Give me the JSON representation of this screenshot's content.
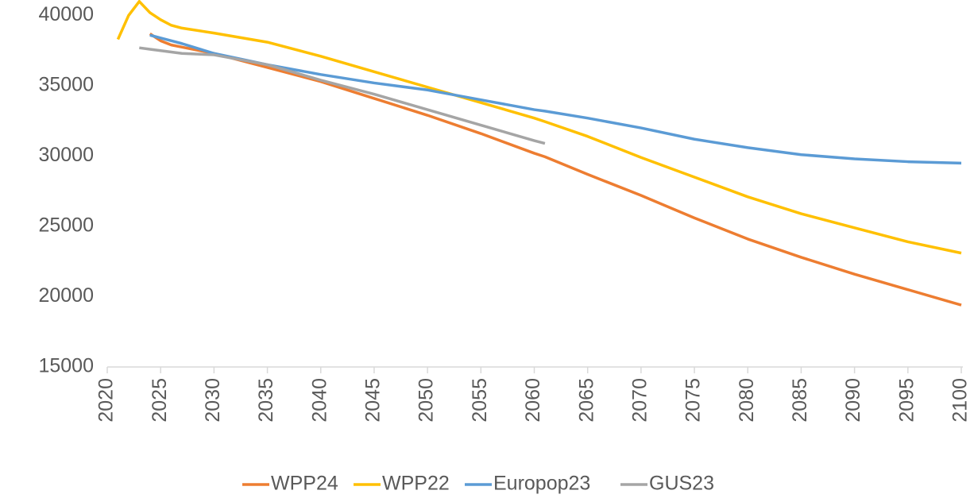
{
  "chart_data": {
    "type": "line",
    "x": [
      2021,
      2022,
      2023,
      2024,
      2025,
      2026,
      2027,
      2030,
      2035,
      2040,
      2045,
      2050,
      2055,
      2060,
      2061,
      2065,
      2070,
      2075,
      2080,
      2085,
      2090,
      2095,
      2100
    ],
    "series": [
      {
        "name": "WPP24",
        "color": "#ed7d31",
        "values": [
          null,
          null,
          null,
          38700,
          38200,
          37900,
          37750,
          37300,
          36300,
          35300,
          34100,
          32900,
          31600,
          30200,
          29950,
          28700,
          27200,
          25600,
          24100,
          22800,
          21600,
          20500,
          19400
        ]
      },
      {
        "name": "WPP22",
        "color": "#ffc000",
        "values": [
          38300,
          40000,
          41000,
          40200,
          39700,
          39300,
          39100,
          38750,
          38100,
          37100,
          36000,
          34900,
          33800,
          32700,
          32450,
          31400,
          29900,
          28500,
          27100,
          25900,
          24900,
          23900,
          23100
        ]
      },
      {
        "name": "Europop23",
        "color": "#5b9bd5",
        "values": [
          null,
          null,
          null,
          38600,
          38400,
          38200,
          38000,
          37300,
          36500,
          35800,
          35200,
          34700,
          34000,
          33300,
          33200,
          32700,
          32000,
          31200,
          30600,
          30100,
          29800,
          29600,
          29500
        ]
      },
      {
        "name": "GUS23",
        "color": "#a5a5a5",
        "values": [
          null,
          null,
          37700,
          37600,
          37500,
          37400,
          37300,
          37200,
          36500,
          35400,
          34400,
          33300,
          32200,
          31100,
          30900,
          null,
          null,
          null,
          null,
          null,
          null,
          null,
          null
        ]
      }
    ],
    "xlim": [
      2020,
      2100
    ],
    "xticks": [
      2020,
      2025,
      2030,
      2035,
      2040,
      2045,
      2050,
      2055,
      2060,
      2065,
      2070,
      2075,
      2080,
      2085,
      2090,
      2095,
      2100
    ],
    "ylim": [
      15000,
      41100
    ],
    "yticks": [
      15000,
      20000,
      25000,
      30000,
      35000,
      40000
    ],
    "grid": false,
    "legend": "bottom"
  }
}
